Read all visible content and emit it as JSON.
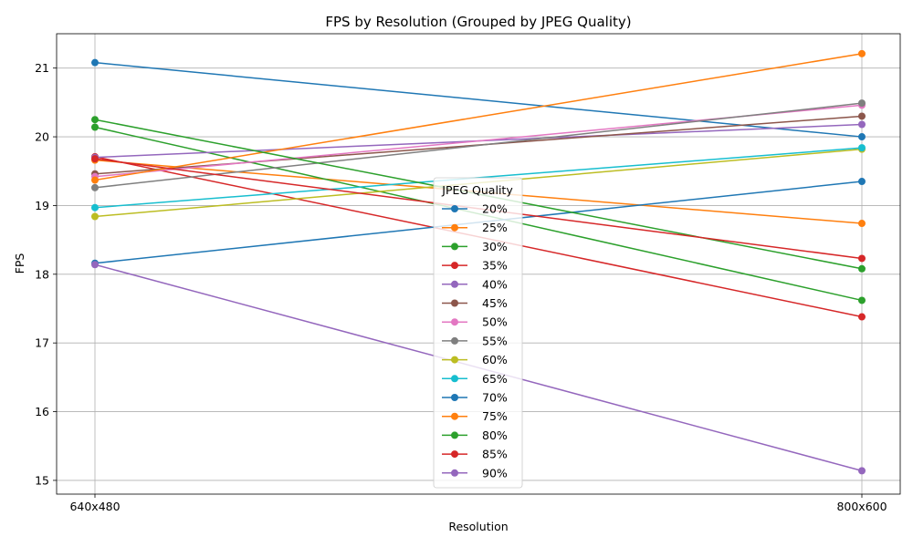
{
  "chart_data": {
    "type": "line",
    "title": "FPS by Resolution (Grouped by JPEG Quality)",
    "xlabel": "Resolution",
    "ylabel": "FPS",
    "categories": [
      "640x480",
      "800x600"
    ],
    "ylim": [
      14.8,
      21.5
    ],
    "yticks": [
      15,
      16,
      17,
      18,
      19,
      20,
      21
    ],
    "grid": true,
    "legend": {
      "title": "JPEG Quality",
      "placement": "center"
    },
    "series": [
      {
        "name": "20%",
        "color": "#1f77b4",
        "values": [
          21.08,
          20.0
        ]
      },
      {
        "name": "25%",
        "color": "#ff7f0e",
        "values": [
          19.66,
          18.74
        ]
      },
      {
        "name": "30%",
        "color": "#2ca02c",
        "values": [
          20.14,
          17.62
        ]
      },
      {
        "name": "35%",
        "color": "#d62728",
        "values": [
          19.71,
          17.38
        ]
      },
      {
        "name": "40%",
        "color": "#9467bd",
        "values": [
          19.7,
          20.18
        ]
      },
      {
        "name": "45%",
        "color": "#8c564b",
        "values": [
          19.46,
          20.3
        ]
      },
      {
        "name": "50%",
        "color": "#e377c2",
        "values": [
          19.42,
          20.46
        ]
      },
      {
        "name": "55%",
        "color": "#7f7f7f",
        "values": [
          19.26,
          20.49
        ]
      },
      {
        "name": "60%",
        "color": "#bcbd22",
        "values": [
          18.84,
          19.82
        ]
      },
      {
        "name": "65%",
        "color": "#17becf",
        "values": [
          18.97,
          19.84
        ]
      },
      {
        "name": "70%",
        "color": "#1f77b4",
        "values": [
          18.16,
          19.35
        ]
      },
      {
        "name": "75%",
        "color": "#ff7f0e",
        "values": [
          19.37,
          21.21
        ]
      },
      {
        "name": "80%",
        "color": "#2ca02c",
        "values": [
          20.25,
          18.08
        ]
      },
      {
        "name": "85%",
        "color": "#d62728",
        "values": [
          19.68,
          18.23
        ]
      },
      {
        "name": "90%",
        "color": "#9467bd",
        "values": [
          18.14,
          15.14
        ]
      }
    ]
  }
}
